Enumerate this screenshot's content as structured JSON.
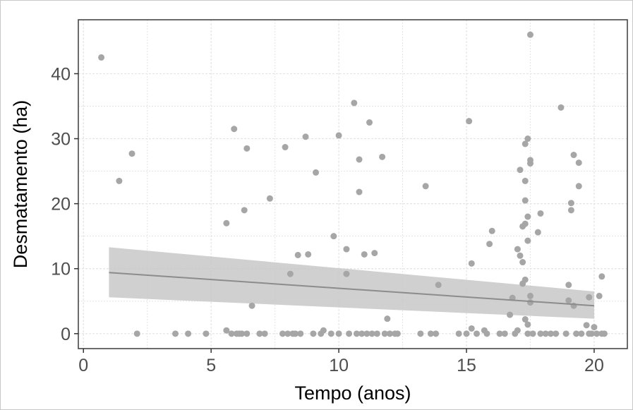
{
  "chart_data": {
    "type": "scatter",
    "title": "",
    "xlabel": "Tempo (anos)",
    "ylabel": "Desmatamento (ha)",
    "xlim": [
      -0.2,
      21.3
    ],
    "ylim": [
      -2.3,
      48.3
    ],
    "x_ticks": [
      0,
      5,
      10,
      15,
      20
    ],
    "x_tick_labels": [
      "0",
      "5",
      "10",
      "15",
      "20"
    ],
    "y_ticks": [
      0,
      10,
      20,
      30,
      40
    ],
    "y_tick_labels": [
      "0",
      "10",
      "20",
      "30",
      "40"
    ],
    "grid": true,
    "legend": "none",
    "colors": {
      "points": "#a6a6a6",
      "fit_line": "#8c8c8c",
      "ribbon": "#c8c8c8",
      "grid": "#e4e4e4",
      "panel_border": "#3a3a3a"
    },
    "points": [
      [
        0.7,
        42.5
      ],
      [
        1.4,
        23.5
      ],
      [
        1.9,
        27.7
      ],
      [
        2.1,
        0
      ],
      [
        3.6,
        0
      ],
      [
        4.1,
        0
      ],
      [
        4.8,
        0
      ],
      [
        5.6,
        17
      ],
      [
        5.6,
        0.5
      ],
      [
        5.8,
        0
      ],
      [
        5.9,
        31.5
      ],
      [
        6.0,
        0
      ],
      [
        6.1,
        0
      ],
      [
        6.2,
        0
      ],
      [
        6.3,
        19
      ],
      [
        6.4,
        28.5
      ],
      [
        6.4,
        0
      ],
      [
        6.6,
        4.3
      ],
      [
        6.9,
        0
      ],
      [
        7.1,
        0
      ],
      [
        7.3,
        20.8
      ],
      [
        7.8,
        0
      ],
      [
        7.9,
        28.7
      ],
      [
        8.0,
        0
      ],
      [
        8.1,
        9.2
      ],
      [
        8.2,
        0
      ],
      [
        8.3,
        0
      ],
      [
        8.4,
        12.1
      ],
      [
        8.5,
        0
      ],
      [
        8.7,
        30.3
      ],
      [
        8.8,
        12.2
      ],
      [
        9.0,
        0
      ],
      [
        9.1,
        24.8
      ],
      [
        9.3,
        0
      ],
      [
        9.4,
        0.5
      ],
      [
        9.7,
        0
      ],
      [
        9.8,
        15
      ],
      [
        10.0,
        30.5
      ],
      [
        10.0,
        0
      ],
      [
        10.3,
        13
      ],
      [
        10.3,
        9.2
      ],
      [
        10.4,
        0
      ],
      [
        10.6,
        35.5
      ],
      [
        10.7,
        0
      ],
      [
        10.8,
        21.8
      ],
      [
        10.8,
        26.8
      ],
      [
        10.9,
        0
      ],
      [
        11.0,
        12.2
      ],
      [
        11.1,
        0
      ],
      [
        11.2,
        32.5
      ],
      [
        11.3,
        0
      ],
      [
        11.4,
        12.4
      ],
      [
        11.5,
        0
      ],
      [
        11.7,
        27.2
      ],
      [
        11.8,
        0
      ],
      [
        11.9,
        2.3
      ],
      [
        12.0,
        0
      ],
      [
        12.2,
        0
      ],
      [
        12.3,
        0
      ],
      [
        13.2,
        0
      ],
      [
        13.4,
        22.7
      ],
      [
        13.6,
        0
      ],
      [
        13.8,
        0
      ],
      [
        13.9,
        7.5
      ],
      [
        14.7,
        0
      ],
      [
        15.0,
        0
      ],
      [
        15.1,
        32.7
      ],
      [
        15.2,
        10.8
      ],
      [
        15.2,
        0.8
      ],
      [
        15.4,
        0
      ],
      [
        15.7,
        0.5
      ],
      [
        15.8,
        0
      ],
      [
        15.9,
        13.8
      ],
      [
        16.0,
        15.8
      ],
      [
        16.3,
        0
      ],
      [
        16.5,
        0
      ],
      [
        16.7,
        2.9
      ],
      [
        16.8,
        5.5
      ],
      [
        16.9,
        0
      ],
      [
        17.0,
        13
      ],
      [
        17.0,
        0.5
      ],
      [
        17.1,
        12
      ],
      [
        17.1,
        25.2
      ],
      [
        17.2,
        16.5
      ],
      [
        17.2,
        7.7
      ],
      [
        17.2,
        11
      ],
      [
        17.3,
        16.9
      ],
      [
        17.3,
        29.2
      ],
      [
        17.3,
        20.5
      ],
      [
        17.3,
        23.5
      ],
      [
        17.3,
        2.2
      ],
      [
        17.3,
        8.3
      ],
      [
        17.4,
        30
      ],
      [
        17.4,
        18
      ],
      [
        17.4,
        14.3
      ],
      [
        17.4,
        1.4
      ],
      [
        17.4,
        0
      ],
      [
        17.5,
        46
      ],
      [
        17.5,
        26.2
      ],
      [
        17.5,
        26.7
      ],
      [
        17.5,
        5.8
      ],
      [
        17.5,
        4.8
      ],
      [
        17.6,
        0
      ],
      [
        17.8,
        15.6
      ],
      [
        17.9,
        18.5
      ],
      [
        17.9,
        0
      ],
      [
        18.1,
        0
      ],
      [
        18.3,
        0
      ],
      [
        18.5,
        0
      ],
      [
        18.7,
        34.8
      ],
      [
        18.9,
        0
      ],
      [
        19.0,
        7.5
      ],
      [
        19.0,
        5.1
      ],
      [
        19.1,
        20.1
      ],
      [
        19.1,
        19
      ],
      [
        19.2,
        4.3
      ],
      [
        19.2,
        27.5
      ],
      [
        19.3,
        0
      ],
      [
        19.4,
        26.3
      ],
      [
        19.4,
        22.7
      ],
      [
        19.5,
        0
      ],
      [
        19.7,
        1.3
      ],
      [
        19.8,
        5.6
      ],
      [
        19.8,
        0
      ],
      [
        19.9,
        0
      ],
      [
        20.0,
        1
      ],
      [
        20.1,
        0
      ],
      [
        20.2,
        5.8
      ],
      [
        20.3,
        8.8
      ],
      [
        20.3,
        0
      ],
      [
        20.4,
        0
      ]
    ],
    "fit": {
      "x": [
        1,
        20
      ],
      "y": [
        9.4,
        4.3
      ],
      "ci_lower": [
        5.6,
        2.3
      ],
      "ci_upper": [
        13.3,
        6.5
      ]
    }
  }
}
